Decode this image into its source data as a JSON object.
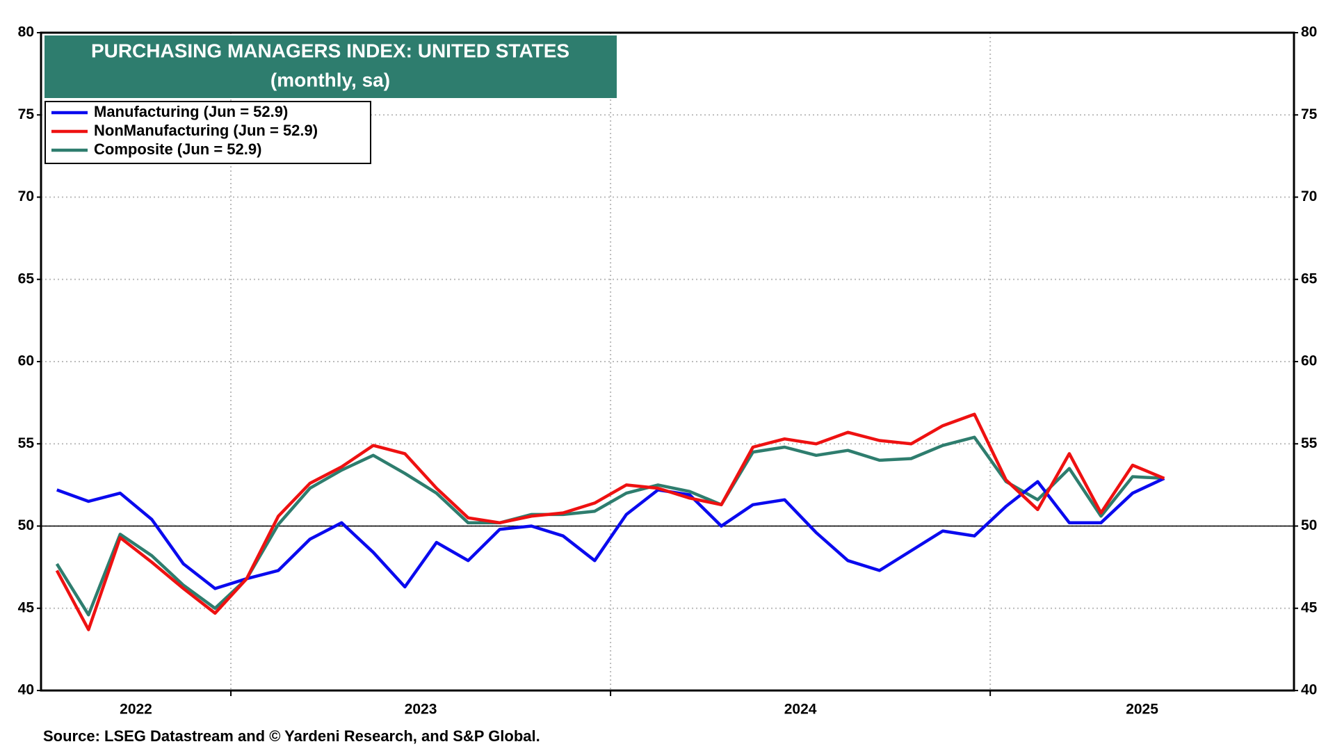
{
  "chart_data": {
    "type": "line",
    "title": "PURCHASING MANAGERS INDEX: UNITED STATES",
    "subtitle": "(monthly, sa)",
    "source": "Source: LSEG Datastream and © Yardeni Research, and S&P Global.",
    "x_axis_labels": [
      "2022",
      "2023",
      "2024",
      "2025"
    ],
    "ylim": [
      40,
      80
    ],
    "yticks": [
      40,
      45,
      50,
      55,
      60,
      65,
      70,
      75,
      80
    ],
    "y2lim": [
      40,
      80
    ],
    "y2ticks": [
      40,
      45,
      50,
      55,
      60,
      65,
      70,
      75,
      80
    ],
    "reference_line": 50,
    "grid": true,
    "legend": "upper left",
    "series": [
      {
        "name": "Manufacturing (Jun = 52.9)",
        "color": "#0a0aee",
        "values": [
          52.2,
          51.5,
          52.0,
          50.4,
          47.7,
          46.2,
          46.8,
          47.3,
          49.2,
          50.2,
          48.4,
          46.3,
          49.0,
          47.9,
          49.8,
          50.0,
          49.4,
          47.9,
          50.7,
          52.2,
          51.9,
          50.0,
          51.3,
          51.6,
          49.6,
          47.9,
          47.3,
          48.5,
          49.7,
          49.4,
          51.2,
          52.7,
          50.2,
          50.2,
          52.0,
          52.9
        ]
      },
      {
        "name": "NonManufacturing (Jun = 52.9)",
        "color": "#ee1111",
        "values": [
          47.3,
          43.7,
          49.3,
          47.8,
          46.2,
          44.7,
          46.8,
          50.6,
          52.6,
          53.6,
          54.9,
          54.4,
          52.3,
          50.5,
          50.2,
          50.6,
          50.8,
          51.4,
          52.5,
          52.3,
          51.7,
          51.3,
          54.8,
          55.3,
          55.0,
          55.7,
          55.2,
          55.0,
          56.1,
          56.8,
          52.8,
          51.0,
          54.4,
          50.8,
          53.7,
          52.9
        ]
      },
      {
        "name": "Composite (Jun = 52.9)",
        "color": "#2e7d6e",
        "values": [
          47.7,
          44.6,
          49.5,
          48.2,
          46.4,
          45.0,
          46.8,
          50.1,
          52.3,
          53.4,
          54.3,
          53.2,
          52.0,
          50.2,
          50.2,
          50.7,
          50.7,
          50.9,
          52.0,
          52.5,
          52.1,
          51.3,
          54.5,
          54.8,
          54.3,
          54.6,
          54.0,
          54.1,
          54.9,
          55.4,
          52.7,
          51.6,
          53.5,
          50.6,
          53.0,
          52.9
        ]
      }
    ]
  }
}
